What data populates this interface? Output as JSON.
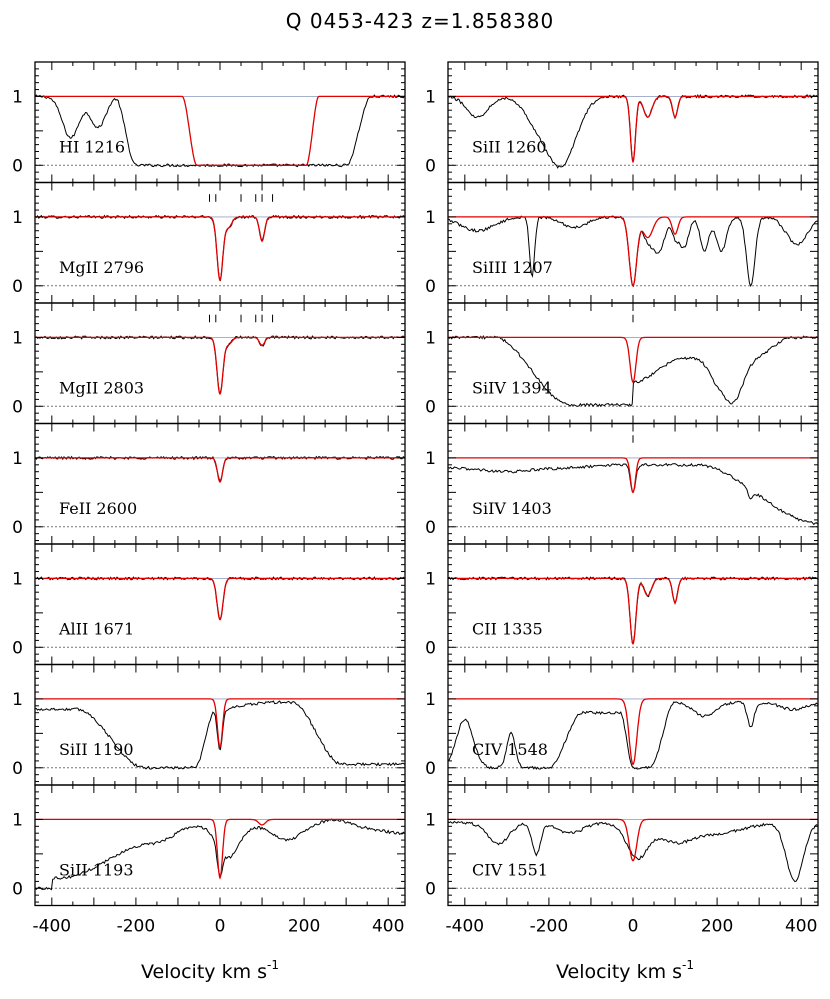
{
  "chart_data": {
    "type": "line",
    "title": "Q 0453-423   z=1.858380",
    "xlabel": "Velocity  km  s",
    "xlabel_sup": "-1",
    "xlim": [
      -440,
      440
    ],
    "ylim": [
      -0.25,
      1.5
    ],
    "x_ticks": [
      -400,
      -200,
      0,
      200,
      400
    ],
    "x_tick_labels": [
      "-400",
      "-200",
      "0",
      "200",
      "400"
    ],
    "y_ticks": [
      0,
      1
    ],
    "y_tick_labels": [
      "0",
      "1"
    ],
    "series_legend": [
      {
        "name": "",
        "color": "#000000"
      },
      {
        "name": "",
        "color": "#e00000"
      }
    ],
    "panels": [
      {
        "column": 0,
        "row": 0,
        "label": "HI 1216",
        "ymin": -0.25,
        "ymax": 1.55,
        "data_kind": "hi",
        "component_marks": []
      },
      {
        "column": 0,
        "row": 1,
        "label": "MgII 2796",
        "lines": [
          {
            "v": 0,
            "depth": 0.92,
            "width": 7
          },
          {
            "v": 20,
            "depth": 0.15,
            "width": 8
          },
          {
            "v": 100,
            "depth": 0.35,
            "width": 6
          }
        ],
        "component_marks": [
          -25,
          -10,
          50,
          85,
          100,
          125
        ]
      },
      {
        "column": 0,
        "row": 2,
        "label": "MgII 2803",
        "lines": [
          {
            "v": 0,
            "depth": 0.82,
            "width": 7
          },
          {
            "v": 20,
            "depth": 0.1,
            "width": 8
          },
          {
            "v": 100,
            "depth": 0.12,
            "width": 6
          }
        ],
        "component_marks": [
          -25,
          -10,
          50,
          85,
          100,
          125
        ]
      },
      {
        "column": 0,
        "row": 3,
        "label": "FeII 2600",
        "lines": [
          {
            "v": 0,
            "depth": 0.35,
            "width": 6
          }
        ],
        "component_marks": []
      },
      {
        "column": 0,
        "row": 4,
        "label": "AlII 1671",
        "lines": [
          {
            "v": 0,
            "depth": 0.6,
            "width": 7
          }
        ],
        "component_marks": []
      },
      {
        "column": 0,
        "row": 5,
        "label": "SiII 1190",
        "data_kind": "broad_si1190",
        "lines": [
          {
            "v": 0,
            "depth": 0.7,
            "width": 6
          }
        ],
        "component_marks": []
      },
      {
        "column": 0,
        "row": 6,
        "label": "SiII 1193",
        "data_kind": "broad_si1193",
        "lines": [
          {
            "v": 0,
            "depth": 0.85,
            "width": 6
          },
          {
            "v": 100,
            "depth": 0.08,
            "width": 8
          }
        ],
        "component_marks": []
      },
      {
        "column": 1,
        "row": 0,
        "label": "SiII 1260",
        "data_kind": "si1260",
        "lines": [
          {
            "v": 0,
            "depth": 0.95,
            "width": 6
          },
          {
            "v": 35,
            "depth": 0.3,
            "width": 10
          },
          {
            "v": 100,
            "depth": 0.3,
            "width": 6
          }
        ],
        "component_marks": []
      },
      {
        "column": 1,
        "row": 1,
        "label": "SiIII 1207",
        "data_kind": "si1207",
        "lines": [
          {
            "v": 0,
            "depth": 1.0,
            "width": 9
          },
          {
            "v": 35,
            "depth": 0.3,
            "width": 12
          },
          {
            "v": 100,
            "depth": 0.25,
            "width": 7
          }
        ],
        "component_marks": []
      },
      {
        "column": 1,
        "row": 2,
        "label": "SiIV 1394",
        "data_kind": "si1394",
        "lines": [
          {
            "v": 0,
            "depth": 0.65,
            "width": 7
          }
        ],
        "component_marks": [
          0
        ]
      },
      {
        "column": 1,
        "row": 3,
        "label": "SiIV 1403",
        "data_kind": "si1403",
        "lines": [
          {
            "v": 0,
            "depth": 0.5,
            "width": 6
          }
        ],
        "component_marks": [
          0
        ]
      },
      {
        "column": 1,
        "row": 4,
        "label": "CII 1335",
        "lines": [
          {
            "v": 0,
            "depth": 0.95,
            "width": 7
          },
          {
            "v": 35,
            "depth": 0.25,
            "width": 9
          },
          {
            "v": 100,
            "depth": 0.35,
            "width": 6
          }
        ],
        "component_marks": []
      },
      {
        "column": 1,
        "row": 5,
        "label": "CIV 1548",
        "data_kind": "civ1548",
        "lines": [
          {
            "v": 0,
            "depth": 0.95,
            "width": 9
          }
        ],
        "component_marks": []
      },
      {
        "column": 1,
        "row": 6,
        "label": "CIV 1551",
        "data_kind": "civ1551",
        "lines": [
          {
            "v": 0,
            "depth": 0.6,
            "width": 9
          }
        ],
        "component_marks": []
      }
    ]
  }
}
